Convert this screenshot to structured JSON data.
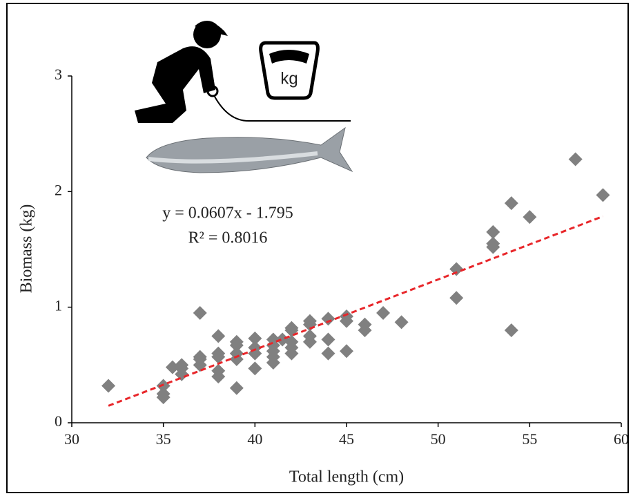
{
  "chart_data": {
    "type": "scatter",
    "x_label": "Total length (cm)",
    "y_label": "Biomass (kg)",
    "x": [
      32,
      35,
      35,
      35,
      35.5,
      36,
      36,
      36,
      37,
      37,
      37,
      37,
      38,
      38,
      38,
      38,
      38,
      39,
      39,
      39,
      39,
      39,
      40,
      40,
      40,
      40,
      41,
      41,
      41,
      41,
      41,
      41.5,
      42,
      42,
      42,
      42,
      42,
      43,
      43,
      43,
      43,
      44,
      44,
      44,
      45,
      45,
      45,
      46,
      46,
      47,
      48,
      51,
      51,
      53,
      53,
      53,
      54,
      54,
      55,
      57.5,
      59
    ],
    "values": [
      0.32,
      0.22,
      0.25,
      0.32,
      0.48,
      0.42,
      0.47,
      0.5,
      0.95,
      0.5,
      0.55,
      0.57,
      0.75,
      0.6,
      0.57,
      0.45,
      0.4,
      0.7,
      0.67,
      0.6,
      0.55,
      0.3,
      0.73,
      0.65,
      0.6,
      0.47,
      0.72,
      0.67,
      0.62,
      0.57,
      0.52,
      0.72,
      0.82,
      0.8,
      0.7,
      0.65,
      0.6,
      0.88,
      0.85,
      0.75,
      0.7,
      0.9,
      0.72,
      0.6,
      0.92,
      0.88,
      0.62,
      0.85,
      0.8,
      0.95,
      0.87,
      1.33,
      1.08,
      1.65,
      1.55,
      1.52,
      1.9,
      0.8,
      1.78,
      2.28,
      1.97
    ],
    "color": "#808080",
    "trendline": {
      "x": [
        32,
        59
      ],
      "values": [
        0.147,
        1.786
      ],
      "color": "#e8262a"
    },
    "equation": "y = 0.0607x - 1.795",
    "r_squared": "R² = 0.8016",
    "xlim": [
      30,
      60
    ],
    "ylim": [
      0,
      3
    ],
    "xticks": [
      30,
      35,
      40,
      45,
      50,
      55,
      60
    ],
    "yticks": [
      0,
      1,
      2,
      3
    ]
  }
}
